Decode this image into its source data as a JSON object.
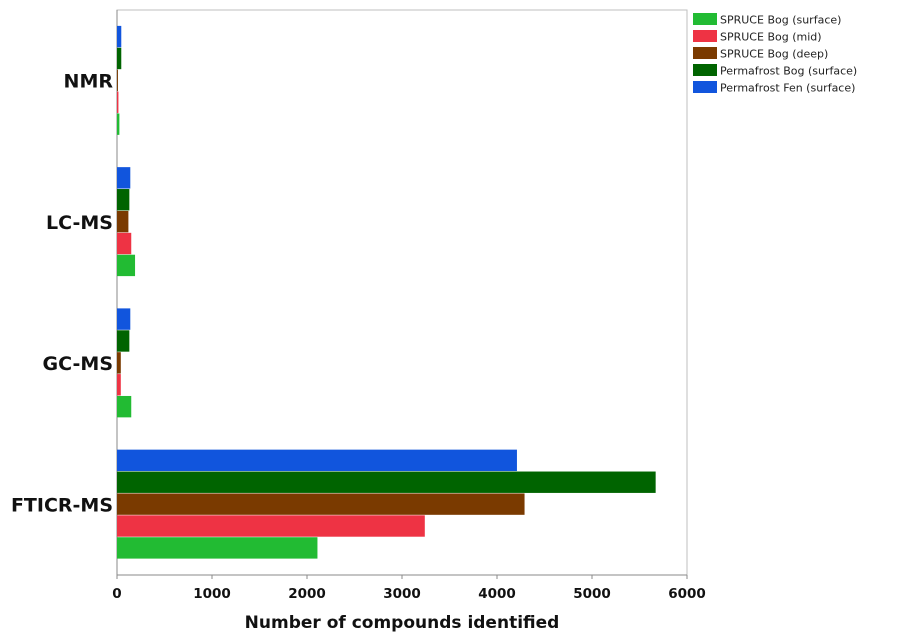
{
  "chart_data": {
    "type": "bar",
    "orientation": "horizontal",
    "categories": [
      "NMR",
      "LC-MS",
      "GC-MS",
      "FTICR-MS"
    ],
    "series": [
      {
        "name": "SPRUCE Bog (surface)",
        "color": "#22bb33",
        "values": [
          25,
          190,
          150,
          2110
        ]
      },
      {
        "name": "SPRUCE Bog (mid)",
        "color": "#ee3344",
        "values": [
          15,
          150,
          40,
          3240
        ]
      },
      {
        "name": "SPRUCE Bog (deep)",
        "color": "#7a3a00",
        "values": [
          10,
          120,
          40,
          4290
        ]
      },
      {
        "name": "Permafrost Bog (surface)",
        "color": "#006400",
        "values": [
          45,
          130,
          130,
          5670
        ]
      },
      {
        "name": "Permafrost Fen (surface)",
        "color": "#1155dd",
        "values": [
          45,
          140,
          140,
          4210
        ]
      }
    ],
    "xlabel": "Number of compounds identified",
    "ylabel": "",
    "xlim": [
      0,
      6000
    ],
    "xticks": [
      "0",
      "1000",
      "2000",
      "3000",
      "4000",
      "5000",
      "6000"
    ],
    "grid": false,
    "legend": "top-right"
  }
}
